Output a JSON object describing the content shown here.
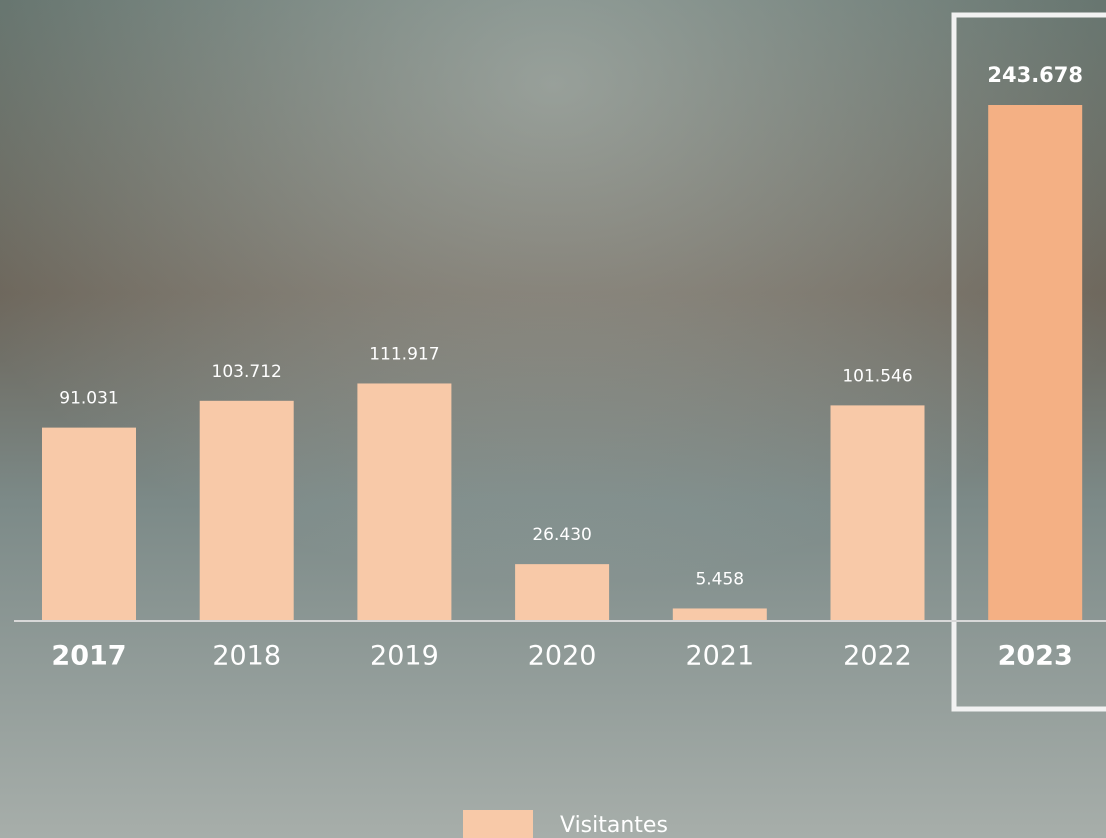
{
  "chart_data": {
    "type": "bar",
    "categories": [
      "2017",
      "2018",
      "2019",
      "2020",
      "2021",
      "2022",
      "2023"
    ],
    "series": [
      {
        "name": "Visitantes",
        "color": "#f8c9a8",
        "colors": [
          "#f8c9a8",
          "#f8c9a8",
          "#f8c9a8",
          "#f8c9a8",
          "#f8c9a8",
          "#f8c9a8",
          "#f4b084"
        ],
        "values": [
          91031,
          103712,
          111917,
          26430,
          5458,
          101546,
          243678
        ],
        "value_labels": [
          "91.031",
          "103.712",
          "111.917",
          "26.430",
          "5.458",
          "101.546",
          "243.678"
        ]
      }
    ],
    "legend": "bottom"
  }
}
